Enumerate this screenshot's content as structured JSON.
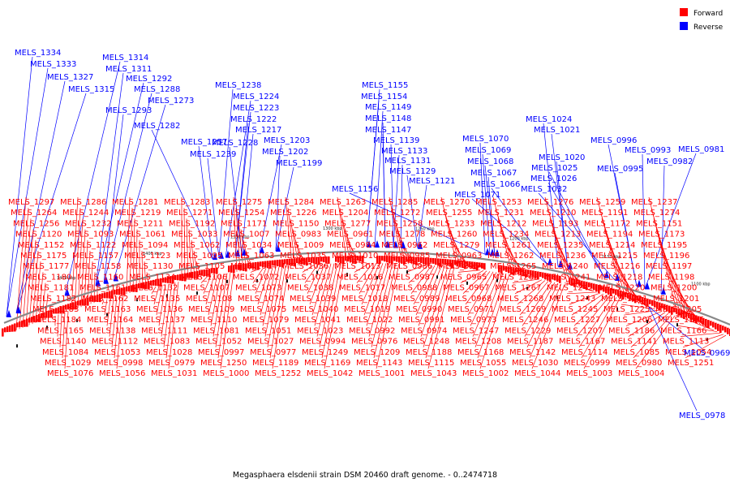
{
  "legend": {
    "forward": {
      "label": "Forward",
      "color": "#ff0000"
    },
    "reverse": {
      "label": "Reverse",
      "color": "#0000ff"
    }
  },
  "caption": "Megasphaera elsdenii strain DSM 20460 draft genome. - 0..2474718",
  "kbp_marks": [
    "1450 kbp",
    "1400 kbp",
    "1350 kbp",
    "1300 kbp",
    "1250 kbp",
    "1200 kbp",
    "1150 kbp",
    "1100 kbp"
  ],
  "reverse_genes": [
    "MELS_1334",
    "MELS_1333",
    "MELS_1327",
    "MELS_1315",
    "MELS_1314",
    "MELS_1311",
    "MELS_1292",
    "MELS_1288",
    "MELS_1293",
    "MELS_1273",
    "MELS_1282",
    "MELS_1257",
    "MELS_1239",
    "MELS_1238",
    "MELS_1224",
    "MELS_1223",
    "MELS_1222",
    "MELS_1217",
    "MELS_1228",
    "MELS_1203",
    "MELS_1202",
    "MELS_1199",
    "MELS_1155",
    "MELS_1154",
    "MELS_1149",
    "MELS_1148",
    "MELS_1147",
    "MELS_1139",
    "MELS_1133",
    "MELS_1131",
    "MELS_1129",
    "MELS_1121",
    "MELS_1156",
    "MELS_1070",
    "MELS_1069",
    "MELS_1068",
    "MELS_1067",
    "MELS_1066",
    "MELS_1071",
    "MELS_1024",
    "MELS_1021",
    "MELS_1020",
    "MELS_1025",
    "MELS_1026",
    "MELS_1032",
    "MELS_0996",
    "MELS_0995",
    "MELS_0993",
    "MELS_0981",
    "MELS_0982"
  ],
  "forward_genes": [
    "MELS_1297",
    "MELS_1286",
    "MELS_1281",
    "MELS_1283",
    "MELS_1275",
    "MELS_1284",
    "MELS_1263",
    "MELS_1285",
    "MELS_1270",
    "MELS_1253",
    "MELS_1276",
    "MELS_1259",
    "MELS_1237",
    "MELS_1264",
    "MELS_1244",
    "MELS_1219",
    "MELS_1271",
    "MELS_1254",
    "MELS_1226",
    "MELS_1204",
    "MELS_1272",
    "MELS_1255",
    "MELS_1231",
    "MELS_1210",
    "MELS_1191",
    "MELS_1274",
    "MELS_1256",
    "MELS_1232",
    "MELS_1211",
    "MELS_1192",
    "MELS_1171",
    "MELS_1150",
    "MELS_1277",
    "MELS_1258",
    "MELS_1233",
    "MELS_1212",
    "MELS_1193",
    "MELS_1172",
    "MELS_1151",
    "MELS_1120",
    "MELS_1093",
    "MELS_1061",
    "MELS_1033",
    "MELS_1007",
    "MELS_0983",
    "MELS_0961",
    "MELS_1278",
    "MELS_1260",
    "MELS_1234",
    "MELS_1213",
    "MELS_1194",
    "MELS_1173",
    "MELS_1152",
    "MELS_1122",
    "MELS_1094",
    "MELS_1062",
    "MELS_1034",
    "MELS_1009",
    "MELS_0984",
    "MELS_0962",
    "MELS_1279",
    "MELS_1261",
    "MELS_1235",
    "MELS_1214",
    "MELS_1195",
    "MELS_1175",
    "MELS_1157",
    "MELS_1123",
    "MELS_1095",
    "MELS_1063",
    "MELS_1035",
    "MELS_1010",
    "MELS_0985",
    "MELS_0963",
    "MELS_1262",
    "MELS_1236",
    "MELS_1215",
    "MELS_1196",
    "MELS_1177",
    "MELS_1158",
    "MELS_1130",
    "MELS_1105",
    "MELS_1064",
    "MELS_1036",
    "MELS_1013",
    "MELS_0986",
    "MELS_0964",
    "MELS_1265",
    "MELS_1240",
    "MELS_1216",
    "MELS_1197",
    "MELS_1180",
    "MELS_1160",
    "MELS_1134",
    "MELS_1106",
    "MELS_1072",
    "MELS_1037",
    "MELS_1016",
    "MELS_0987",
    "MELS_0965",
    "MELS_1266",
    "MELS_1241",
    "MELS_1218",
    "MELS_1198",
    "MELS_1181",
    "MELS_1161",
    "MELS_1132",
    "MELS_1107",
    "MELS_1073",
    "MELS_1038",
    "MELS_1017",
    "MELS_0988",
    "MELS_0967",
    "MELS_1267",
    "MELS_1242",
    "MELS_1220",
    "MELS_1200",
    "MELS_1182",
    "MELS_1162",
    "MELS_1135",
    "MELS_1108",
    "MELS_1074",
    "MELS_1039",
    "MELS_1018",
    "MELS_0989",
    "MELS_0968",
    "MELS_1268",
    "MELS_1243",
    "MELS_1221",
    "MELS_1201",
    "MELS_1183",
    "MELS_1163",
    "MELS_1136",
    "MELS_1109",
    "MELS_1075",
    "MELS_1040",
    "MELS_1019",
    "MELS_0990",
    "MELS_0971",
    "MELS_1269",
    "MELS_1245",
    "MELS_1225",
    "MELS_1205",
    "MELS_1184",
    "MELS_1164",
    "MELS_1137",
    "MELS_1110",
    "MELS_1079",
    "MELS_1041",
    "MELS_1022",
    "MELS_0991",
    "MELS_0973",
    "MELS_1246",
    "MELS_1227",
    "MELS_1206",
    "MELS_1185",
    "MELS_1165",
    "MELS_1138",
    "MELS_1111",
    "MELS_1081",
    "MELS_1051",
    "MELS_1023",
    "MELS_0992",
    "MELS_0974",
    "MELS_1247",
    "MELS_1229",
    "MELS_1207",
    "MELS_1186",
    "MELS_1166",
    "MELS_1140",
    "MELS_1112",
    "MELS_1083",
    "MELS_1052",
    "MELS_1027",
    "MELS_0994",
    "MELS_0976",
    "MELS_1248",
    "MELS_1208",
    "MELS_1187",
    "MELS_1167",
    "MELS_1141",
    "MELS_1113",
    "MELS_1084",
    "MELS_1053",
    "MELS_1028",
    "MELS_0997",
    "MELS_0977",
    "MELS_1249",
    "MELS_1209",
    "MELS_1188",
    "MELS_1168",
    "MELS_1142",
    "MELS_1114",
    "MELS_1085",
    "MELS_1054",
    "MELS_1029",
    "MELS_0998",
    "MELS_0979",
    "MELS_1250",
    "MELS_1189",
    "MELS_1169",
    "MELS_1143",
    "MELS_1115",
    "MELS_1055",
    "MELS_1030",
    "MELS_0999",
    "MELS_0980",
    "MELS_1251",
    "MELS_1076",
    "MELS_1056",
    "MELS_1031",
    "MELS_1000",
    "MELS_1252",
    "MELS_1042",
    "MELS_1001",
    "MELS_1043",
    "MELS_1002",
    "MELS_1044",
    "MELS_1003",
    "MELS_1004"
  ],
  "reverse_extra": [
    "MELS_0969",
    "MELS_0978"
  ]
}
